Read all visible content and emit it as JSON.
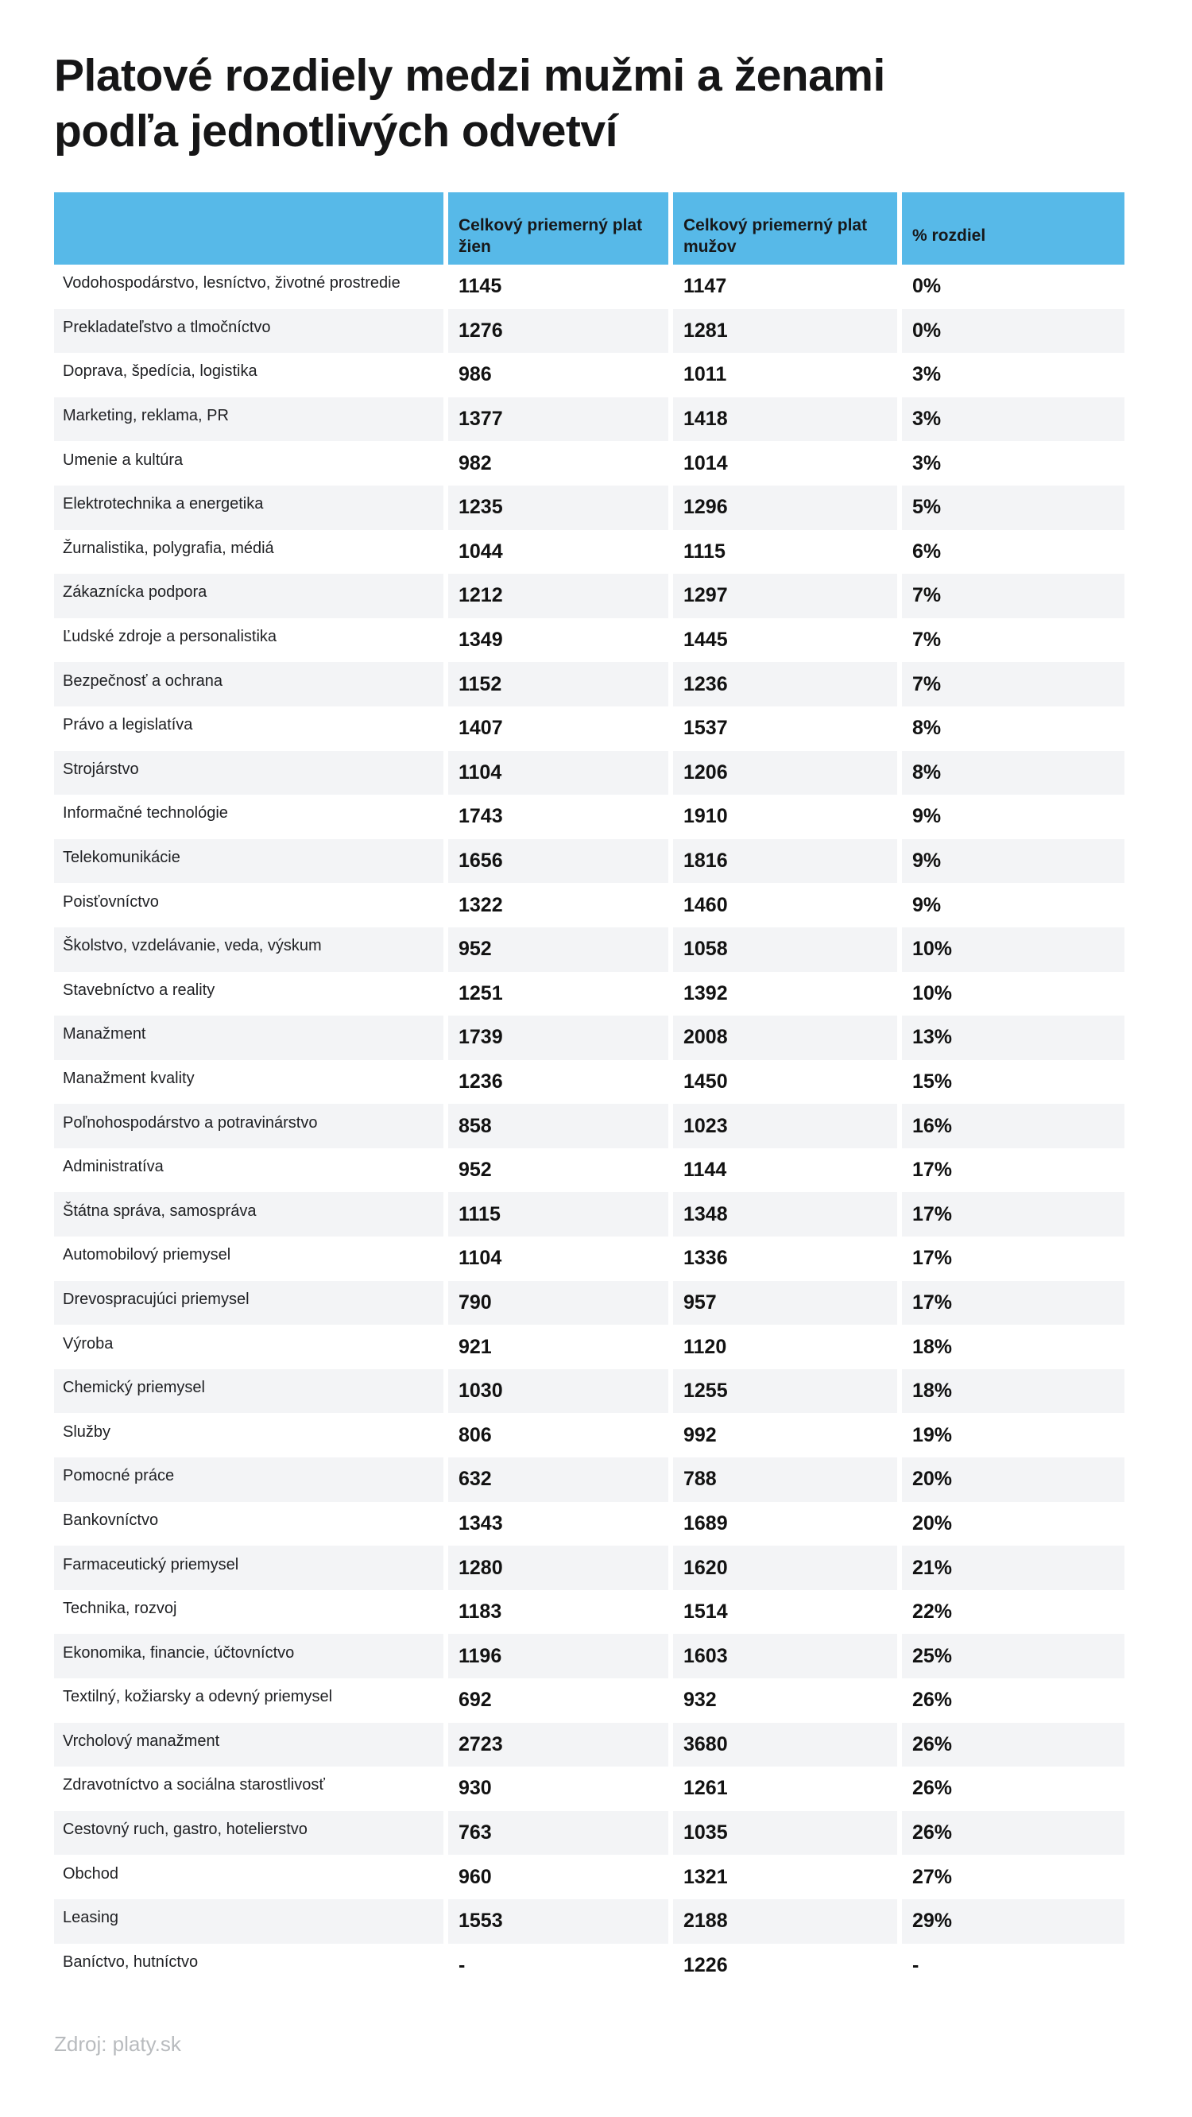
{
  "colors": {
    "header_bg": "#57B9E8",
    "stripe_bg": "#F3F4F6",
    "title_color": "#161617",
    "text_color": "#202124",
    "value_color": "#121212",
    "source_color": "#B8BBBE"
  },
  "chart_data": {
    "type": "table",
    "title": "Platové rozdiely medzi mužmi a ženami podľa jednotlivých odvetví",
    "title_lines": [
      "Platové rozdiely medzi mužmi a ženami",
      "podľa jednotlivých odvetví"
    ],
    "source": "Zdroj: platy.sk",
    "columns": [
      "",
      "Celkový priemerný plat žien",
      "Celkový priemerný plat mužov",
      "% rozdiel"
    ],
    "rows": [
      {
        "industry": "Vodohospodárstvo, lesníctvo, životné prostredie",
        "women": "1145",
        "men": "1147",
        "diff": "0%"
      },
      {
        "industry": "Prekladateľstvo a tlmočníctvo",
        "women": "1276",
        "men": "1281",
        "diff": "0%"
      },
      {
        "industry": "Doprava, špedícia, logistika",
        "women": "986",
        "men": "1011",
        "diff": "3%"
      },
      {
        "industry": "Marketing, reklama, PR",
        "women": "1377",
        "men": "1418",
        "diff": "3%"
      },
      {
        "industry": "Umenie a kultúra",
        "women": "982",
        "men": "1014",
        "diff": "3%"
      },
      {
        "industry": "Elektrotechnika a energetika",
        "women": "1235",
        "men": "1296",
        "diff": "5%"
      },
      {
        "industry": "Žurnalistika, polygrafia, médiá",
        "women": "1044",
        "men": "1115",
        "diff": "6%"
      },
      {
        "industry": "Zákaznícka podpora",
        "women": "1212",
        "men": "1297",
        "diff": "7%"
      },
      {
        "industry": "Ľudské zdroje a personalistika",
        "women": "1349",
        "men": "1445",
        "diff": "7%"
      },
      {
        "industry": "Bezpečnosť a ochrana",
        "women": "1152",
        "men": "1236",
        "diff": "7%"
      },
      {
        "industry": "Právo a legislatíva",
        "women": "1407",
        "men": "1537",
        "diff": "8%"
      },
      {
        "industry": "Strojárstvo",
        "women": "1104",
        "men": "1206",
        "diff": "8%"
      },
      {
        "industry": "Informačné technológie",
        "women": "1743",
        "men": "1910",
        "diff": "9%"
      },
      {
        "industry": "Telekomunikácie",
        "women": "1656",
        "men": "1816",
        "diff": "9%"
      },
      {
        "industry": "Poisťovníctvo",
        "women": "1322",
        "men": "1460",
        "diff": "9%"
      },
      {
        "industry": "Školstvo, vzdelávanie, veda, výskum",
        "women": "952",
        "men": "1058",
        "diff": "10%"
      },
      {
        "industry": "Stavebníctvo a reality",
        "women": "1251",
        "men": "1392",
        "diff": "10%"
      },
      {
        "industry": "Manažment",
        "women": "1739",
        "men": "2008",
        "diff": "13%"
      },
      {
        "industry": "Manažment kvality",
        "women": "1236",
        "men": "1450",
        "diff": "15%"
      },
      {
        "industry": "Poľnohospodárstvo a potravinárstvo",
        "women": "858",
        "men": "1023",
        "diff": "16%"
      },
      {
        "industry": "Administratíva",
        "women": "952",
        "men": "1144",
        "diff": "17%"
      },
      {
        "industry": "Štátna správa, samospráva",
        "women": "1115",
        "men": "1348",
        "diff": "17%"
      },
      {
        "industry": "Automobilový priemysel",
        "women": "1104",
        "men": "1336",
        "diff": "17%"
      },
      {
        "industry": "Drevospracujúci priemysel",
        "women": "790",
        "men": "957",
        "diff": "17%"
      },
      {
        "industry": "Výroba",
        "women": "921",
        "men": "1120",
        "diff": "18%"
      },
      {
        "industry": "Chemický priemysel",
        "women": "1030",
        "men": "1255",
        "diff": "18%"
      },
      {
        "industry": "Služby",
        "women": "806",
        "men": "992",
        "diff": "19%"
      },
      {
        "industry": "Pomocné práce",
        "women": "632",
        "men": "788",
        "diff": "20%"
      },
      {
        "industry": "Bankovníctvo",
        "women": "1343",
        "men": "1689",
        "diff": "20%"
      },
      {
        "industry": "Farmaceutický priemysel",
        "women": "1280",
        "men": "1620",
        "diff": "21%"
      },
      {
        "industry": "Technika, rozvoj",
        "women": "1183",
        "men": "1514",
        "diff": "22%"
      },
      {
        "industry": "Ekonomika, financie, účtovníctvo",
        "women": "1196",
        "men": "1603",
        "diff": "25%"
      },
      {
        "industry": "Textilný, kožiarsky a odevný priemysel",
        "women": "692",
        "men": "932",
        "diff": "26%"
      },
      {
        "industry": "Vrcholový manažment",
        "women": "2723",
        "men": "3680",
        "diff": "26%"
      },
      {
        "industry": "Zdravotníctvo a sociálna starostlivosť",
        "women": "930",
        "men": "1261",
        "diff": "26%"
      },
      {
        "industry": "Cestovný ruch, gastro, hotelierstvo",
        "women": "763",
        "men": "1035",
        "diff": "26%"
      },
      {
        "industry": "Obchod",
        "women": "960",
        "men": "1321",
        "diff": "27%"
      },
      {
        "industry": "Leasing",
        "women": "1553",
        "men": "2188",
        "diff": "29%"
      },
      {
        "industry": "Baníctvo, hutníctvo",
        "women": "-",
        "men": "1226",
        "diff": "-"
      }
    ]
  }
}
